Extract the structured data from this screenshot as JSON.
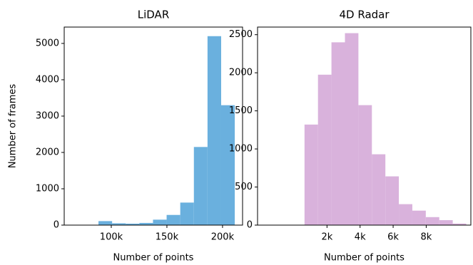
{
  "chart_data": [
    {
      "type": "histogram",
      "title": "LiDAR",
      "xlabel": "Number of points",
      "ylabel": "Number of frames",
      "bins": [
        88500,
        100750,
        113000,
        125250,
        137500,
        149750,
        162000,
        174250,
        186500,
        198750,
        211000
      ],
      "values": [
        110,
        50,
        40,
        60,
        150,
        280,
        620,
        2150,
        5200,
        3300
      ],
      "color": "#6ab0de",
      "xlim": [
        57700,
        218000
      ],
      "xticks": [
        {
          "value": 100000,
          "label": "100k"
        },
        {
          "value": 150000,
          "label": "150k"
        },
        {
          "value": 200000,
          "label": "200k"
        }
      ],
      "ylim": [
        0,
        5450
      ],
      "yticks": [
        0,
        1000,
        2000,
        3000,
        4000,
        5000
      ]
    },
    {
      "type": "histogram",
      "title": "4D Radar",
      "xlabel": "Number of points",
      "bins": [
        640,
        1455,
        2270,
        3085,
        3900,
        4715,
        5530,
        6345,
        7160,
        7975,
        8790,
        9605,
        10420
      ],
      "values": [
        1320,
        1975,
        2400,
        2520,
        1575,
        930,
        640,
        275,
        190,
        105,
        65,
        20
      ],
      "color": "#d9b2dc",
      "xlim": [
        -2200,
        10700
      ],
      "xticks": [
        {
          "value": 2000,
          "label": "2k"
        },
        {
          "value": 4000,
          "label": "4k"
        },
        {
          "value": 6000,
          "label": "6k"
        },
        {
          "value": 8000,
          "label": "8k"
        }
      ],
      "ylim": [
        0,
        2600
      ],
      "yticks": [
        0,
        500,
        1000,
        1500,
        2000,
        2500
      ]
    }
  ]
}
